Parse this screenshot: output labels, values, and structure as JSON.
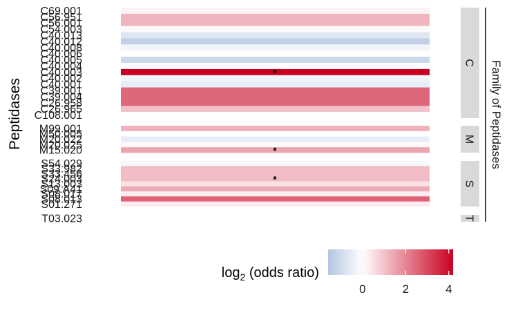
{
  "chart_data": {
    "type": "heatmap",
    "ylabel": "Peptidases",
    "facet_label": "Family of Peptidases",
    "legend_title": "log",
    "legend_title_sub": "2",
    "legend_title_rest": " (odds ratio)",
    "legend_ticks": [
      0,
      2,
      4
    ],
    "value_range": [
      -1.6,
      4.2
    ],
    "colors": {
      "low": "#b3c5e1",
      "mid": "#ffffff",
      "high": "#ca0020"
    },
    "significance_marker": "*",
    "families": [
      {
        "name": "C",
        "rows": [
          {
            "label": "C69.001",
            "value": 0.2
          },
          {
            "label": "C56.951",
            "value": 1.2
          },
          {
            "label": "C56.001",
            "value": 1.2
          },
          {
            "label": "C54.003",
            "value": 0.1
          },
          {
            "label": "C40.013",
            "value": -0.7
          },
          {
            "label": "C40.012",
            "value": -1.3
          },
          {
            "label": "C40.008",
            "value": -0.3
          },
          {
            "label": "C40.006",
            "value": 0.0
          },
          {
            "label": "C40.005",
            "value": -1.1
          },
          {
            "label": "C40.004",
            "value": 0.0
          },
          {
            "label": "C40.003",
            "value": 4.2,
            "significant": true
          },
          {
            "label": "C40.002",
            "value": -0.3
          },
          {
            "label": "C40.001",
            "value": -0.5
          },
          {
            "label": "C39.001",
            "value": 2.5
          },
          {
            "label": "C39.004",
            "value": 2.5
          },
          {
            "label": "C26.958",
            "value": 2.5
          },
          {
            "label": "C26.965",
            "value": 1.0
          },
          {
            "label": "C108.001",
            "value": 0.0
          }
        ]
      },
      {
        "name": "M",
        "rows": [
          {
            "label": "M99.001",
            "value": 1.3
          },
          {
            "label": "M50.005",
            "value": 0.0
          },
          {
            "label": "M20.022",
            "value": -0.5
          },
          {
            "label": "M20.025",
            "value": 0.1
          },
          {
            "label": "M15.020",
            "value": 1.5,
            "significant": true
          }
        ]
      },
      {
        "name": "S",
        "rows": [
          {
            "label": "S54.029",
            "value": -0.2
          },
          {
            "label": "S33.982",
            "value": 1.1
          },
          {
            "label": "S33.456",
            "value": 1.1
          },
          {
            "label": "S24.003",
            "value": 1.1,
            "significant": true
          },
          {
            "label": "S13.003",
            "value": 0.5
          },
          {
            "label": "S09.A41",
            "value": 1.4
          },
          {
            "label": "S08.017",
            "value": 0.3
          },
          {
            "label": "S08.013",
            "value": 2.6
          },
          {
            "label": "S01.271",
            "value": 0.3
          }
        ]
      },
      {
        "name": "T",
        "rows": [
          {
            "label": "T03.023",
            "value": 0.0
          }
        ]
      }
    ]
  }
}
